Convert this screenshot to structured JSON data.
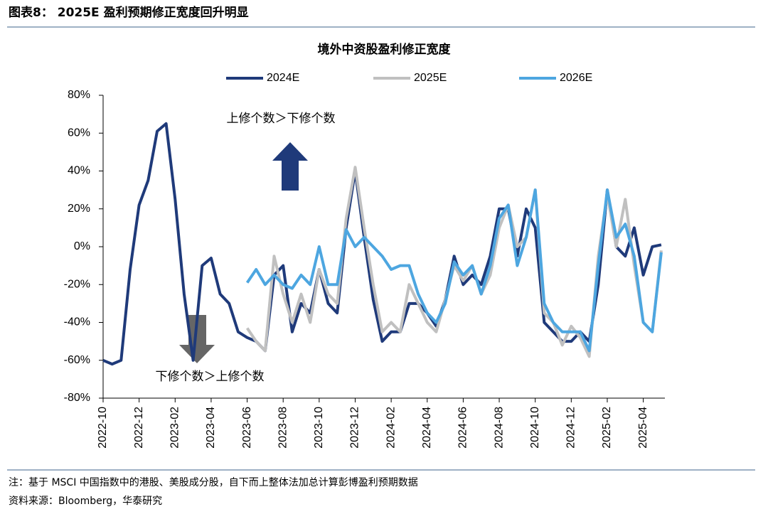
{
  "header": {
    "title": "图表8： 2025E 盈利预期修正宽度回升明显"
  },
  "chart_data": {
    "type": "line",
    "title": "境外中资股盈利修正宽度",
    "annotations": [
      "上修个数＞下修个数",
      "下修个数＞上修个数"
    ],
    "categories": [
      "2022-10",
      null,
      null,
      null,
      "2022-12",
      null,
      null,
      null,
      "2023-02",
      null,
      null,
      null,
      "2023-04",
      null,
      null,
      null,
      "2023-06",
      null,
      null,
      null,
      "2023-08",
      null,
      null,
      null,
      "2023-10",
      null,
      null,
      null,
      "2023-12",
      null,
      null,
      null,
      "2024-02",
      null,
      null,
      null,
      "2024-04",
      null,
      null,
      null,
      "2024-06",
      null,
      null,
      null,
      "2024-08",
      null,
      null,
      null,
      "2024-10",
      null,
      null,
      null,
      "2024-12",
      null,
      null,
      null,
      "2025-02",
      null,
      null,
      null,
      "2025-04",
      null,
      null
    ],
    "series": [
      {
        "name": "2024E",
        "color": "#1f3a7a",
        "values": [
          -60,
          -62,
          -60,
          -12,
          22,
          35,
          61,
          65,
          25,
          -25,
          -60,
          -10,
          -6,
          -25,
          -30,
          -45,
          -48,
          -50,
          -55,
          -15,
          -10,
          -45,
          -30,
          -35,
          -12,
          -30,
          -35,
          10,
          40,
          5,
          -28,
          -50,
          -45,
          -45,
          -30,
          -30,
          -35,
          -42,
          -28,
          -5,
          -20,
          -15,
          -20,
          -5,
          20,
          20,
          -5,
          20,
          10,
          -40,
          -45,
          -50,
          -50,
          -45,
          -50,
          -20,
          30,
          0,
          -5,
          10,
          -15,
          0,
          1
        ]
      },
      {
        "name": "2025E",
        "color": "#c0c0c0",
        "values": [
          null,
          null,
          null,
          null,
          null,
          null,
          null,
          null,
          null,
          null,
          null,
          null,
          null,
          null,
          null,
          null,
          -43,
          -50,
          -55,
          -5,
          -25,
          -40,
          -25,
          -40,
          -12,
          -25,
          -30,
          15,
          42,
          10,
          -20,
          -45,
          -40,
          -45,
          -20,
          -30,
          -40,
          -45,
          -28,
          -10,
          -18,
          -10,
          -25,
          -15,
          10,
          22,
          0,
          5,
          30,
          -35,
          -40,
          -52,
          -42,
          -48,
          -58,
          -5,
          28,
          0,
          25,
          -10,
          -40,
          -45,
          -2
        ]
      },
      {
        "name": "2026E",
        "color": "#4da6e0",
        "values": [
          null,
          null,
          null,
          null,
          null,
          null,
          null,
          null,
          null,
          null,
          null,
          null,
          null,
          null,
          null,
          null,
          -19,
          -12,
          -20,
          -15,
          -20,
          -22,
          -15,
          -20,
          0,
          -20,
          -20,
          9,
          0,
          5,
          0,
          -5,
          -12,
          -10,
          -10,
          -25,
          -35,
          -40,
          -30,
          -8,
          -15,
          -10,
          -25,
          -10,
          15,
          22,
          -10,
          5,
          30,
          -30,
          -40,
          -45,
          -45,
          -45,
          -55,
          -10,
          30,
          5,
          12,
          -5,
          -40,
          -45,
          -3
        ]
      }
    ],
    "ylim": [
      -80,
      80
    ],
    "yticks": [
      {
        "value": -80,
        "label": "-80%"
      },
      {
        "value": -60,
        "label": "-60%"
      },
      {
        "value": -40,
        "label": "-40%"
      },
      {
        "value": -20,
        "label": "-20%"
      },
      {
        "value": 0,
        "label": "0%"
      },
      {
        "value": 20,
        "label": "20%"
      },
      {
        "value": 40,
        "label": "40%"
      },
      {
        "value": 60,
        "label": "60%"
      },
      {
        "value": 80,
        "label": "80%"
      }
    ],
    "legend": "top"
  },
  "footer": {
    "note": "注：基于 MSCI 中国指数中的港股、美股成分股，自下而上整体法加总计算彭博盈利预期数据",
    "source": "资料来源：Bloomberg，华泰研究"
  }
}
